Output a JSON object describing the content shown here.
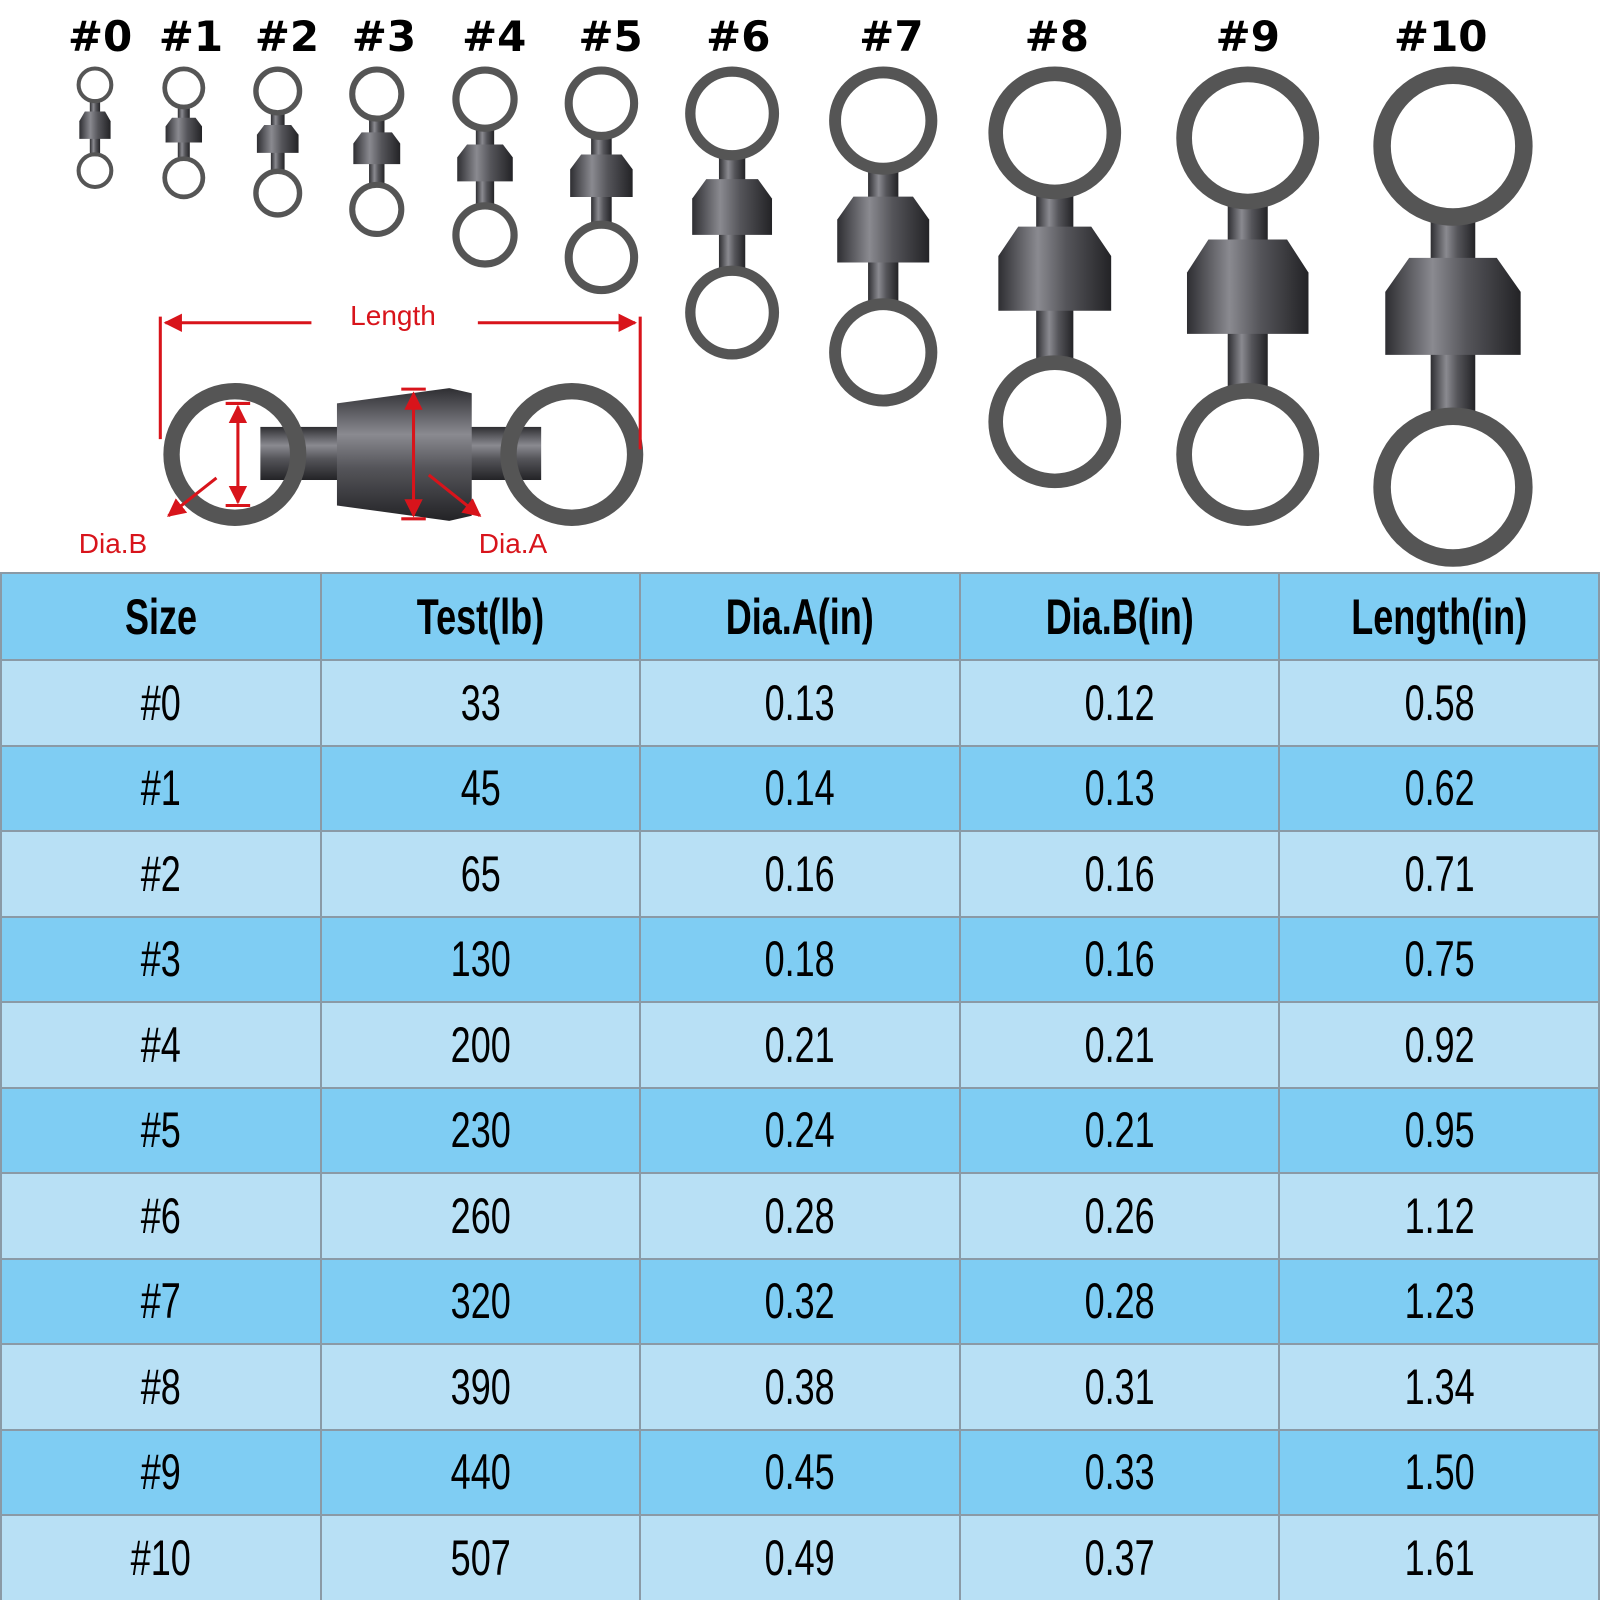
{
  "sizes": [
    "#0",
    "#1",
    "#2",
    "#3",
    "#4",
    "#5",
    "#6",
    "#7",
    "#8",
    "#9",
    "#10"
  ],
  "diagram": {
    "length_label": "Length",
    "dia_a_label": "Dia.A",
    "dia_b_label": "Dia.B"
  },
  "colors": {
    "header_bg": "#7fcdf3",
    "row_light": "#b8e0f5",
    "row_dark": "#7fcdf3",
    "border": "#8a9aa6",
    "annotation_red": "#d8141b",
    "metal": "#4a4a4e"
  },
  "table": {
    "headers": [
      "Size",
      "Test(lb)",
      "Dia.A(in)",
      "Dia.B(in)",
      "Length(in)"
    ],
    "rows": [
      [
        "#0",
        "33",
        "0.13",
        "0.12",
        "0.58"
      ],
      [
        "#1",
        "45",
        "0.14",
        "0.13",
        "0.62"
      ],
      [
        "#2",
        "65",
        "0.16",
        "0.16",
        "0.71"
      ],
      [
        "#3",
        "130",
        "0.18",
        "0.16",
        "0.75"
      ],
      [
        "#4",
        "200",
        "0.21",
        "0.21",
        "0.92"
      ],
      [
        "#5",
        "230",
        "0.24",
        "0.21",
        "0.95"
      ],
      [
        "#6",
        "260",
        "0.28",
        "0.26",
        "1.12"
      ],
      [
        "#7",
        "320",
        "0.32",
        "0.28",
        "1.23"
      ],
      [
        "#8",
        "390",
        "0.38",
        "0.31",
        "1.34"
      ],
      [
        "#9",
        "440",
        "0.45",
        "0.33",
        "1.50"
      ],
      [
        "#10",
        "507",
        "0.49",
        "0.37",
        "1.61"
      ]
    ]
  }
}
